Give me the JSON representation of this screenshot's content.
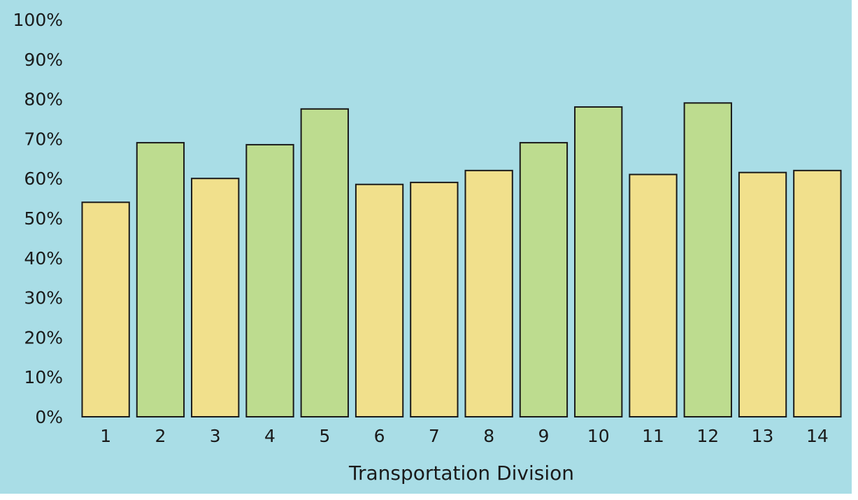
{
  "chart_data": {
    "type": "bar",
    "title": "",
    "xlabel": "Transportation Division",
    "ylabel": "",
    "ylim": [
      0,
      100
    ],
    "y_ticks": [
      "0%",
      "10%",
      "20%",
      "30%",
      "40%",
      "50%",
      "60%",
      "70%",
      "80%",
      "90%",
      "100%"
    ],
    "grid": false,
    "categories": [
      "1",
      "2",
      "3",
      "4",
      "5",
      "6",
      "7",
      "8",
      "9",
      "10",
      "11",
      "12",
      "13",
      "14"
    ],
    "values": [
      54,
      69,
      60,
      68.5,
      77.5,
      58.5,
      59,
      62,
      69,
      78,
      61,
      79,
      61.5,
      62
    ],
    "bar_color_groups": [
      "yellow",
      "green",
      "yellow",
      "green",
      "green",
      "yellow",
      "yellow",
      "yellow",
      "green",
      "green",
      "yellow",
      "green",
      "yellow",
      "yellow"
    ],
    "colors": {
      "background": "#a9dde6",
      "yellow": "#f1e08c",
      "green": "#bddc8f",
      "outline": "#1a1a1a"
    }
  }
}
